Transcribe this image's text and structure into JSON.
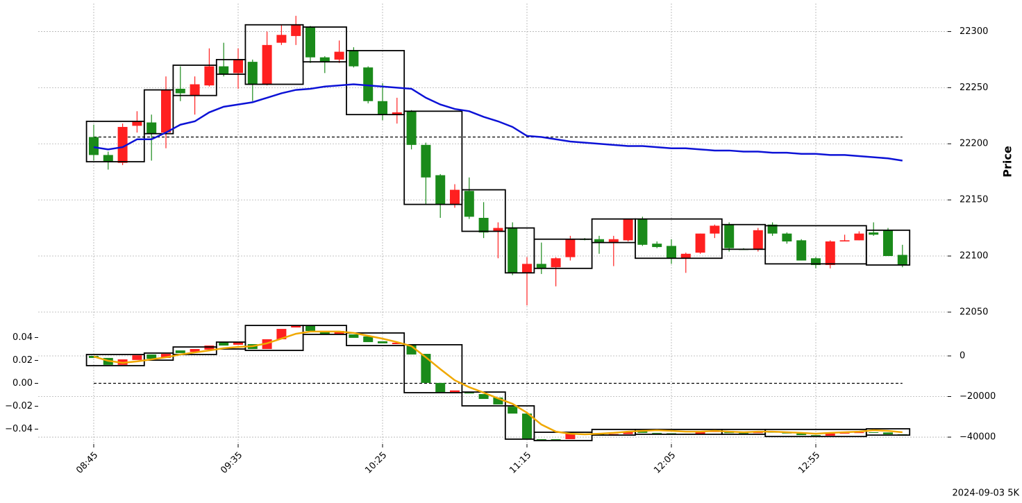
{
  "chart_data": [
    {
      "type": "candlestick",
      "ylabel": "Price",
      "up_color": "#ff2020",
      "down_color": "#1a8a1a",
      "ylim": [
        22045,
        22325
      ],
      "yticks": [
        22050,
        22100,
        22150,
        22200,
        22250,
        22300
      ],
      "grid": true,
      "axis_side": "right",
      "open": [
        22206,
        22190,
        22183,
        22216,
        22219,
        22210,
        22249,
        22243,
        22252,
        22269,
        22263,
        22273,
        22253,
        22290,
        22296,
        22304,
        22277,
        22275,
        22283,
        22268,
        22238,
        22226,
        22229,
        22199,
        22172,
        22146,
        22158,
        22134,
        22122,
        22125,
        22085,
        22093,
        22090,
        22099,
        22115,
        22115,
        22112,
        22114,
        22133,
        22111,
        22109,
        22098,
        22103,
        22120,
        22128,
        22106,
        22106,
        22128,
        22120,
        22114,
        22098,
        22092,
        22113,
        22114,
        22121,
        22123,
        22101
      ],
      "high": [
        22217,
        22193,
        22218,
        22229,
        22226,
        22260,
        22269,
        22260,
        22285,
        22290,
        22285,
        22275,
        22300,
        22306,
        22314,
        22305,
        22278,
        22292,
        22286,
        22269,
        22254,
        22241,
        22230,
        22201,
        22173,
        22164,
        22170,
        22148,
        22130,
        22130,
        22099,
        22112,
        22099,
        22118,
        22116,
        22118,
        22118,
        22133,
        22135,
        22113,
        22115,
        22103,
        22120,
        22128,
        22130,
        22107,
        22125,
        22130,
        22121,
        22115,
        22099,
        22114,
        22119,
        22122,
        22130,
        22125,
        22110
      ],
      "low": [
        22185,
        22177,
        22181,
        22210,
        22185,
        22196,
        22238,
        22226,
        22251,
        22260,
        22249,
        22238,
        22252,
        22288,
        22288,
        22272,
        22263,
        22272,
        22268,
        22236,
        22221,
        22218,
        22195,
        22146,
        22134,
        22143,
        22133,
        22116,
        22098,
        22083,
        22056,
        22084,
        22073,
        22096,
        22114,
        22102,
        22091,
        22113,
        22109,
        22107,
        22093,
        22085,
        22102,
        22116,
        22104,
        22106,
        22104,
        22118,
        22111,
        22096,
        22089,
        22089,
        22113,
        22114,
        22118,
        22100,
        22090
      ],
      "close": [
        22190,
        22184,
        22215,
        22220,
        22209,
        22248,
        22245,
        22253,
        22269,
        22262,
        22275,
        22253,
        22288,
        22297,
        22306,
        22277,
        22273,
        22282,
        22269,
        22238,
        22226,
        22228,
        22199,
        22170,
        22146,
        22159,
        22135,
        22121,
        22125,
        22085,
        22093,
        22089,
        22098,
        22115,
        22115,
        22112,
        22115,
        22133,
        22110,
        22108,
        22098,
        22102,
        22120,
        22127,
        22107,
        22106,
        22123,
        22120,
        22113,
        22096,
        22092,
        22113,
        22114,
        22120,
        22119,
        22100,
        22092
      ],
      "lines": [
        {
          "color": "#0c12d6",
          "values": [
            22197,
            22195,
            22197,
            22204,
            22204,
            22210,
            22217,
            22220,
            22228,
            22233,
            22235,
            22237,
            22241,
            22245,
            22248,
            22249,
            22251,
            22252,
            22253,
            22252,
            22251,
            22250,
            22249,
            22241,
            22235,
            22231,
            22229,
            22224,
            22220,
            22215,
            22207,
            22206,
            22204,
            22202,
            22201,
            22200,
            22199,
            22198,
            22198,
            22197,
            22196,
            22196,
            22195,
            22194,
            22194,
            22193,
            22193,
            22192,
            22192,
            22191,
            22191,
            22190,
            22190,
            22189,
            22188,
            22187,
            22185
          ]
        }
      ],
      "hlines": [
        {
          "value": 22206,
          "color": "#000000"
        }
      ],
      "boxes": [
        {
          "start": 0,
          "end": 3,
          "top": 22220,
          "bottom": 22184
        },
        {
          "start": 4,
          "end": 5,
          "top": 22248,
          "bottom": 22209
        },
        {
          "start": 6,
          "end": 8,
          "top": 22270,
          "bottom": 22243
        },
        {
          "start": 9,
          "end": 10,
          "top": 22275,
          "bottom": 22262
        },
        {
          "start": 11,
          "end": 14,
          "top": 22306,
          "bottom": 22253
        },
        {
          "start": 15,
          "end": 17,
          "top": 22304,
          "bottom": 22273
        },
        {
          "start": 18,
          "end": 21,
          "top": 22283,
          "bottom": 22226
        },
        {
          "start": 22,
          "end": 25,
          "top": 22229,
          "bottom": 22146
        },
        {
          "start": 26,
          "end": 28,
          "top": 22159,
          "bottom": 22122
        },
        {
          "start": 29,
          "end": 30,
          "top": 22125,
          "bottom": 22085
        },
        {
          "start": 31,
          "end": 34,
          "top": 22115,
          "bottom": 22089
        },
        {
          "start": 35,
          "end": 37,
          "top": 22133,
          "bottom": 22112
        },
        {
          "start": 38,
          "end": 43,
          "top": 22133,
          "bottom": 22098
        },
        {
          "start": 44,
          "end": 46,
          "top": 22128,
          "bottom": 22106
        },
        {
          "start": 47,
          "end": 53,
          "top": 22127,
          "bottom": 22093
        },
        {
          "start": 54,
          "end": 56,
          "top": 22123,
          "bottom": 22092
        }
      ]
    },
    {
      "type": "candlestick",
      "up_color": "#ff2020",
      "down_color": "#1a8a1a",
      "categories": [
        "08:45",
        null,
        null,
        null,
        null,
        null,
        null,
        null,
        null,
        null,
        "09:35",
        null,
        null,
        null,
        null,
        null,
        null,
        null,
        null,
        null,
        "10:25",
        null,
        null,
        null,
        null,
        null,
        null,
        null,
        null,
        null,
        "11:15",
        null,
        null,
        null,
        null,
        null,
        null,
        null,
        null,
        null,
        "12:05",
        null,
        null,
        null,
        null,
        null,
        null,
        null,
        null,
        null,
        "12:55",
        null,
        null,
        null,
        null,
        null,
        null
      ],
      "ylim": [
        -0.053,
        0.053
      ],
      "yticks": [
        {
          "value": -0.04,
          "label": "−0.04"
        },
        {
          "value": -0.02,
          "label": "−0.02"
        },
        {
          "value": 0,
          "label": "0.00"
        },
        0.02,
        0.04
      ],
      "y2lim": [
        -43400,
        16400
      ],
      "y2ticks": [
        {
          "value": -40000,
          "label": "−40000"
        },
        {
          "value": -20000,
          "label": "−20000"
        },
        0
      ],
      "grid": true,
      "candle_axis": "y2",
      "open": [
        0,
        -1000,
        -4400,
        -2000,
        700,
        -1000,
        2700,
        2000,
        3100,
        6500,
        5500,
        5800,
        3400,
        8200,
        14000,
        14700,
        12000,
        10900,
        10600,
        9600,
        7200,
        5800,
        5500,
        1000,
        -13300,
        -17800,
        -18100,
        -18800,
        -20500,
        -25000,
        -28400,
        -41000,
        -41000,
        -41000,
        -38300,
        -38600,
        -38900,
        -38500,
        -37200,
        -37900,
        -38100,
        -38800,
        -38400,
        -37500,
        -37000,
        -38000,
        -38000,
        -37300,
        -37800,
        -38200,
        -39000,
        -39300,
        -38200,
        -38000,
        -37600,
        -37700,
        -38600
      ],
      "close": [
        -1000,
        -4400,
        -1700,
        300,
        -1400,
        1000,
        1400,
        3400,
        5100,
        5100,
        6800,
        3400,
        8200,
        13300,
        15000,
        12300,
        10600,
        12300,
        8900,
        6800,
        6200,
        6500,
        700,
        -13300,
        -17800,
        -17000,
        -18500,
        -21200,
        -23900,
        -28400,
        -40700,
        -41400,
        -41300,
        -38300,
        -38600,
        -38900,
        -38500,
        -37200,
        -37900,
        -38100,
        -38800,
        -38400,
        -37500,
        -37000,
        -38000,
        -38000,
        -37300,
        -37800,
        -38200,
        -39000,
        -39300,
        -38200,
        -38000,
        -37600,
        -37700,
        -38600,
        -39000
      ],
      "lines": [
        {
          "color": "#f0a800",
          "axis": "y2",
          "values": [
            -300,
            -2400,
            -3400,
            -2700,
            -1700,
            -700,
            700,
            1700,
            2700,
            3800,
            4400,
            4800,
            6200,
            8500,
            10900,
            12000,
            12000,
            12000,
            11300,
            9900,
            8500,
            6800,
            4800,
            -700,
            -6500,
            -12000,
            -15400,
            -18100,
            -20900,
            -23600,
            -28000,
            -33800,
            -37300,
            -38300,
            -38600,
            -38300,
            -37900,
            -37300,
            -36900,
            -36600,
            -36900,
            -37300,
            -37300,
            -36900,
            -37300,
            -37600,
            -37300,
            -37300,
            -37600,
            -37900,
            -38300,
            -37900,
            -37600,
            -37300,
            -36600,
            -36900,
            -37600
          ]
        }
      ],
      "hlines": [
        {
          "value": 0,
          "axis": "y",
          "color": "#000000"
        }
      ],
      "boxes": [
        {
          "start": 0,
          "end": 3,
          "top": 700,
          "bottom": -4800
        },
        {
          "start": 4,
          "end": 5,
          "top": 1400,
          "bottom": -2100
        },
        {
          "start": 6,
          "end": 8,
          "top": 4400,
          "bottom": 700
        },
        {
          "start": 9,
          "end": 10,
          "top": 6800,
          "bottom": 3400
        },
        {
          "start": 11,
          "end": 14,
          "top": 15000,
          "bottom": 2700
        },
        {
          "start": 15,
          "end": 17,
          "top": 15000,
          "bottom": 10600
        },
        {
          "start": 18,
          "end": 21,
          "top": 11300,
          "bottom": 5100
        },
        {
          "start": 22,
          "end": 25,
          "top": 5500,
          "bottom": -18100
        },
        {
          "start": 26,
          "end": 28,
          "top": -17800,
          "bottom": -24600
        },
        {
          "start": 29,
          "end": 30,
          "top": -24600,
          "bottom": -41000
        },
        {
          "start": 31,
          "end": 34,
          "top": -37600,
          "bottom": -41700
        },
        {
          "start": 35,
          "end": 37,
          "top": -36200,
          "bottom": -39000
        },
        {
          "start": 38,
          "end": 43,
          "top": -36200,
          "bottom": -38600
        },
        {
          "start": 44,
          "end": 46,
          "top": -36200,
          "bottom": -38600
        },
        {
          "start": 47,
          "end": 53,
          "top": -36200,
          "bottom": -39700
        },
        {
          "start": 54,
          "end": 56,
          "top": -35900,
          "bottom": -39000
        }
      ]
    }
  ],
  "footnote": "2024-09-03 5K"
}
